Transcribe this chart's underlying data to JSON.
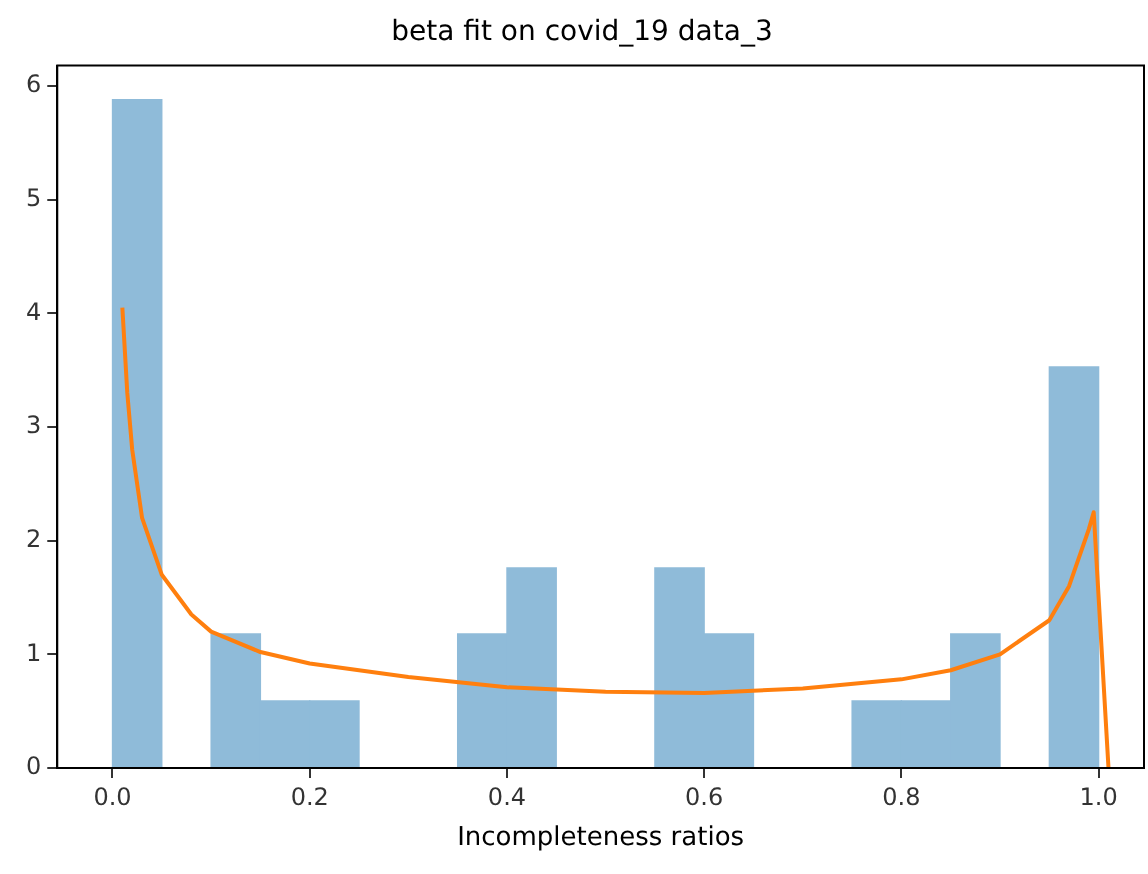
{
  "chart_data": {
    "type": "histogram",
    "title": "beta fit on covid_19 data_3",
    "xlabel": "Incompleteness ratios",
    "bins": [
      0,
      0.05,
      0.1,
      0.15,
      0.2,
      0.25,
      0.3,
      0.35,
      0.4,
      0.45,
      0.5,
      0.55,
      0.6,
      0.65,
      0.7,
      0.75,
      0.8,
      0.85,
      0.9,
      0.95,
      1
    ],
    "values": [
      5.88,
      0,
      1.18,
      0.59,
      0.59,
      0,
      0,
      1.18,
      1.76,
      0,
      0,
      1.76,
      1.18,
      0,
      0,
      0.59,
      0.59,
      1.18,
      0,
      3.53
    ],
    "color": "#8fbbd9",
    "series": [
      {
        "type": "line",
        "color": "#ff7f0e",
        "x": [
          0.01,
          0.015,
          0.02,
          0.03,
          0.05,
          0.08,
          0.1,
          0.15,
          0.2,
          0.3,
          0.4,
          0.5,
          0.6,
          0.7,
          0.8,
          0.85,
          0.9,
          0.95,
          0.97,
          0.99,
          0.995,
          1.01
        ],
        "values": [
          4.05,
          3.3,
          2.8,
          2.2,
          1.7,
          1.35,
          1.2,
          1.02,
          0.92,
          0.8,
          0.71,
          0.67,
          0.66,
          0.7,
          0.78,
          0.86,
          1.0,
          1.3,
          1.6,
          2.1,
          2.25,
          0
        ]
      }
    ],
    "xlim": [
      -0.056,
      1.046
    ],
    "ylim": [
      0,
      6.18
    ],
    "xticks": [
      {
        "value": 0,
        "label": "0.0"
      },
      {
        "value": 0.2,
        "label": "0.2"
      },
      {
        "value": 0.4,
        "label": "0.4"
      },
      {
        "value": 0.6,
        "label": "0.6"
      },
      {
        "value": 0.8,
        "label": "0.8"
      },
      {
        "value": 1,
        "label": "1.0"
      }
    ],
    "yticks": [
      0,
      1,
      2,
      3,
      4,
      5,
      6
    ],
    "grid": false,
    "legend": false
  }
}
